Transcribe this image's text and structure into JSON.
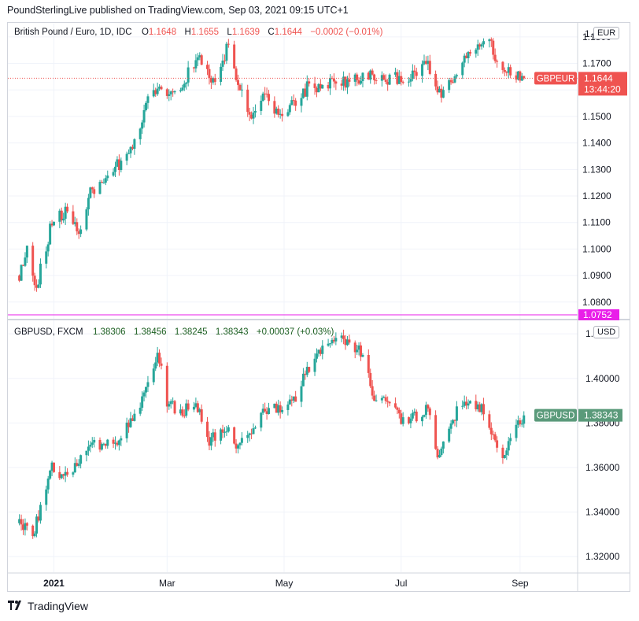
{
  "header": {
    "publisher_line": "PoundSterlingLive published on TradingView.com, Sep 03, 2021 09:15 UTC+1"
  },
  "footer": {
    "brand": "TradingView"
  },
  "colors": {
    "up": "#26a69a",
    "down": "#ef5350",
    "grid": "#f0f3fa",
    "magenta": "#e91ee9",
    "gbpusd_label_bg": "#5a9a7a"
  },
  "chart_data": [
    {
      "type": "candlestick",
      "pane": "top",
      "title": "British Pound / Euro, 1D, IDC",
      "ohlc_legend": {
        "o_label": "O",
        "o": "1.1648",
        "h_label": "H",
        "h": "1.1655",
        "l_label": "L",
        "l": "1.1639",
        "c_label": "C",
        "c": "1.1644",
        "change": "−0.0002 (−0.01%)"
      },
      "unit": "EUR",
      "ylim": [
        1.074,
        1.185
      ],
      "y_ticks": [
        "1.1800",
        "1.1700",
        "1.1600",
        "1.1500",
        "1.1400",
        "1.1300",
        "1.1200",
        "1.1100",
        "1.1000",
        "1.0900",
        "1.0800"
      ],
      "top_tick_partial": "1.",
      "last_label": {
        "symbol": "GBPEUR",
        "value": "1.1644",
        "countdown": "13:44:20"
      },
      "horizontal_line": {
        "value": 1.0752,
        "label": "1.0752"
      },
      "anchors": [
        [
          "2020-12-14",
          1.09
        ],
        [
          "2020-12-18",
          1.1
        ],
        [
          "2020-12-23",
          1.086
        ],
        [
          "2020-12-31",
          1.11
        ],
        [
          "2021-01-08",
          1.115
        ],
        [
          "2021-01-14",
          1.105
        ],
        [
          "2021-01-19",
          1.12
        ],
        [
          "2021-01-27",
          1.127
        ],
        [
          "2021-02-05",
          1.133
        ],
        [
          "2021-02-12",
          1.14
        ],
        [
          "2021-02-19",
          1.156
        ],
        [
          "2021-02-25",
          1.162
        ],
        [
          "2021-03-03",
          1.158
        ],
        [
          "2021-03-10",
          1.164
        ],
        [
          "2021-03-18",
          1.172
        ],
        [
          "2021-03-26",
          1.162
        ],
        [
          "2021-04-02",
          1.178
        ],
        [
          "2021-04-06",
          1.164
        ],
        [
          "2021-04-13",
          1.151
        ],
        [
          "2021-04-21",
          1.157
        ],
        [
          "2021-04-28",
          1.15
        ],
        [
          "2021-05-07",
          1.155
        ],
        [
          "2021-05-14",
          1.162
        ],
        [
          "2021-05-21",
          1.16
        ],
        [
          "2021-05-28",
          1.164
        ],
        [
          "2021-06-04",
          1.162
        ],
        [
          "2021-06-11",
          1.165
        ],
        [
          "2021-06-18",
          1.166
        ],
        [
          "2021-06-25",
          1.164
        ],
        [
          "2021-07-02",
          1.165
        ],
        [
          "2021-07-09",
          1.166
        ],
        [
          "2021-07-15",
          1.17
        ],
        [
          "2021-07-22",
          1.157
        ],
        [
          "2021-07-30",
          1.168
        ],
        [
          "2021-08-05",
          1.175
        ],
        [
          "2021-08-12",
          1.179
        ],
        [
          "2021-08-17",
          1.178
        ],
        [
          "2021-08-20",
          1.17
        ],
        [
          "2021-08-26",
          1.1665
        ],
        [
          "2021-09-03",
          1.1644
        ]
      ]
    },
    {
      "type": "candlestick",
      "pane": "bottom",
      "title": "GBPUSD, FXCM",
      "ohlc_legend": {
        "o": "1.38306",
        "h": "1.38456",
        "l": "1.38245",
        "c": "1.38343",
        "change": "+0.00037 (+0.03%)"
      },
      "unit": "USD",
      "ylim": [
        1.313,
        1.425
      ],
      "y_ticks": [
        "1.42000",
        "1.40000",
        "1.38000",
        "1.36000",
        "1.34000",
        "1.32000"
      ],
      "last_label": {
        "symbol": "GBPUSD",
        "value": "1.38343"
      },
      "anchors": [
        [
          "2020-12-14",
          1.335
        ],
        [
          "2020-12-21",
          1.33
        ],
        [
          "2020-12-31",
          1.36
        ],
        [
          "2021-01-08",
          1.355
        ],
        [
          "2021-01-15",
          1.365
        ],
        [
          "2021-01-22",
          1.37
        ],
        [
          "2021-01-29",
          1.372
        ],
        [
          "2021-02-05",
          1.373
        ],
        [
          "2021-02-10",
          1.381
        ],
        [
          "2021-02-19",
          1.396
        ],
        [
          "2021-02-24",
          1.413
        ],
        [
          "2021-03-01",
          1.39
        ],
        [
          "2021-03-08",
          1.385
        ],
        [
          "2021-03-16",
          1.388
        ],
        [
          "2021-03-23",
          1.372
        ],
        [
          "2021-03-31",
          1.378
        ],
        [
          "2021-04-07",
          1.37
        ],
        [
          "2021-04-16",
          1.38
        ],
        [
          "2021-04-23",
          1.388
        ],
        [
          "2021-04-30",
          1.385
        ],
        [
          "2021-05-07",
          1.392
        ],
        [
          "2021-05-14",
          1.405
        ],
        [
          "2021-05-21",
          1.415
        ],
        [
          "2021-05-28",
          1.417
        ],
        [
          "2021-06-04",
          1.416
        ],
        [
          "2021-06-11",
          1.412
        ],
        [
          "2021-06-17",
          1.39
        ],
        [
          "2021-06-24",
          1.392
        ],
        [
          "2021-07-01",
          1.38
        ],
        [
          "2021-07-09",
          1.383
        ],
        [
          "2021-07-15",
          1.387
        ],
        [
          "2021-07-20",
          1.362
        ],
        [
          "2021-07-27",
          1.38
        ],
        [
          "2021-08-02",
          1.39
        ],
        [
          "2021-08-09",
          1.388
        ],
        [
          "2021-08-13",
          1.385
        ],
        [
          "2021-08-19",
          1.37
        ],
        [
          "2021-08-23",
          1.365
        ],
        [
          "2021-08-27",
          1.375
        ],
        [
          "2021-09-03",
          1.3834
        ]
      ]
    }
  ],
  "time_axis": {
    "labels": [
      {
        "text": "2021",
        "date": "2021-01-01",
        "bold": true
      },
      {
        "text": "Mar",
        "date": "2021-03-01",
        "bold": false
      },
      {
        "text": "May",
        "date": "2021-05-01",
        "bold": false
      },
      {
        "text": "Jul",
        "date": "2021-07-01",
        "bold": false
      },
      {
        "text": "Sep",
        "date": "2021-09-01",
        "bold": false
      }
    ],
    "start": "2020-12-08",
    "end": "2021-10-01"
  }
}
